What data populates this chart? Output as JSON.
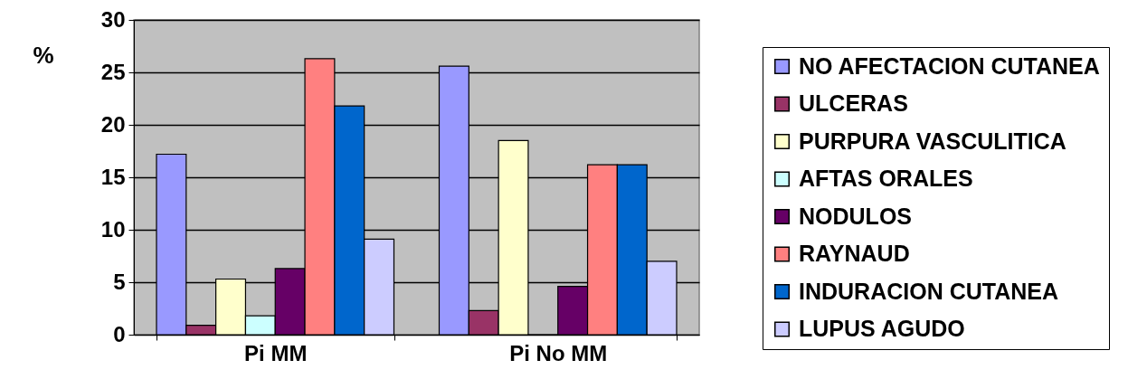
{
  "chart_data": {
    "type": "bar",
    "categories": [
      "Pi MM",
      "Pi No MM"
    ],
    "ylabel": "%",
    "ylim": [
      0,
      30
    ],
    "yticks": [
      0,
      5,
      10,
      15,
      20,
      25,
      30
    ],
    "grid": "y",
    "legend": "right",
    "series": [
      {
        "name": "NO AFECTACION CUTANEA",
        "color": "#9999ff",
        "values": [
          17.2,
          25.6
        ]
      },
      {
        "name": "ULCERAS",
        "color": "#993366",
        "values": [
          0.9,
          2.3
        ]
      },
      {
        "name": "PURPURA VASCULITICA",
        "color": "#ffffcc",
        "values": [
          5.3,
          18.5
        ]
      },
      {
        "name": "AFTAS ORALES",
        "color": "#ccffff",
        "values": [
          1.8,
          0
        ]
      },
      {
        "name": "NODULOS",
        "color": "#660066",
        "values": [
          6.3,
          4.6
        ]
      },
      {
        "name": "RAYNAUD",
        "color": "#ff8080",
        "values": [
          26.3,
          16.2
        ]
      },
      {
        "name": "INDURACION CUTANEA",
        "color": "#0066cc",
        "values": [
          21.8,
          16.2
        ]
      },
      {
        "name": "LUPUS AGUDO",
        "color": "#ccccff",
        "values": [
          9.1,
          7.0
        ]
      }
    ]
  }
}
